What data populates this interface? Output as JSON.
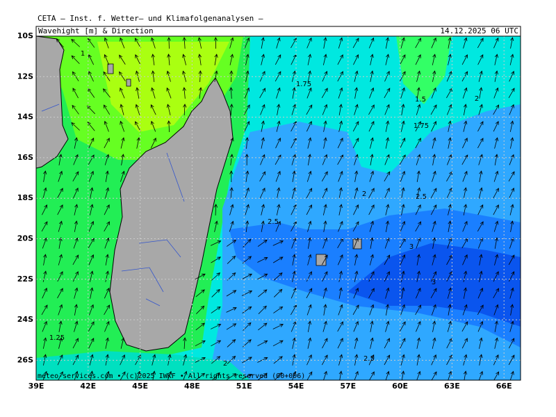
{
  "header": {
    "title": "CETA – Inst. f. Wetter– und Klimafolgenanalysen –",
    "subtitle": "Wavehight [m] & Direction",
    "valid_time": "14.12.2025 06 UTC"
  },
  "map": {
    "lat_labels": [
      "10S",
      "12S",
      "14S",
      "16S",
      "18S",
      "20S",
      "22S",
      "24S",
      "26S"
    ],
    "lon_labels": [
      "39E",
      "42E",
      "45E",
      "48E",
      "51E",
      "54E",
      "57E",
      "60E",
      "63E",
      "66E"
    ],
    "contour_labels": [
      "1",
      "1.75",
      "1.5",
      "2",
      "1.75",
      "2",
      "2.5",
      "2.5",
      "3",
      "3",
      "1.25",
      "2",
      "2.5"
    ]
  },
  "footer": {
    "credit": "meteo-services.com • (c)2025 IWKF • All rights reserved (00+006)"
  }
}
